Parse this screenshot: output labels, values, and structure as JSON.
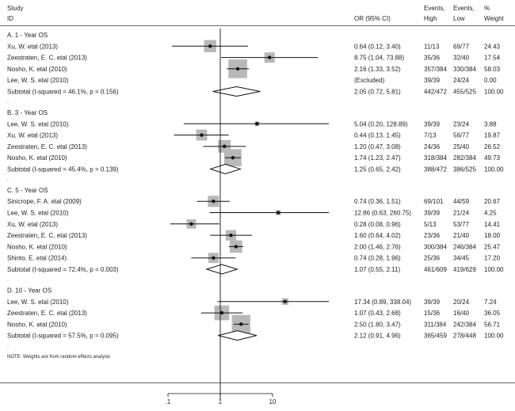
{
  "chart_data": {
    "type": "forest",
    "header": {
      "study": "Study",
      "id": "ID",
      "or_ci": "OR (95% CI)",
      "events_high_1": "Events,",
      "events_high_2": "High",
      "events_low_1": "Events,",
      "events_low_2": "Low",
      "weight_1": "%",
      "weight_2": "Weight"
    },
    "x_scale": "log",
    "x_ticks": [
      {
        "value": 0.1,
        "label": ".1"
      },
      {
        "value": 1,
        "label": "1"
      },
      {
        "value": 10,
        "label": "10"
      }
    ],
    "note": "NOTE: Weights are from random effects analysis",
    "groups": [
      {
        "label": "A. 1 - Year OS",
        "studies": [
          {
            "study": "Xu, W. etal (2013)",
            "or": 0.64,
            "lo": 0.12,
            "hi": 3.4,
            "or_ci": "0.64 (0.12, 3.40)",
            "events_high": "11/13",
            "events_low": "69/77",
            "weight": "24.43"
          },
          {
            "study": "Zeestraten, E. C. etal (2013)",
            "or": 8.75,
            "lo": 1.04,
            "hi": 73.88,
            "or_ci": "8.75 (1.04, 73.88)",
            "events_high": "35/36",
            "events_low": "32/40",
            "weight": "17.54"
          },
          {
            "study": "Nosho, K. etal (2010)",
            "or": 2.16,
            "lo": 1.33,
            "hi": 3.52,
            "or_ci": "2.16 (1.33, 3.52)",
            "events_high": "357/384",
            "events_low": "330/384",
            "weight": "58.03"
          },
          {
            "study": "Lee, W. S. etal (2010)",
            "or": null,
            "lo": null,
            "hi": null,
            "or_ci": "(Excluded)",
            "events_high": "39/39",
            "events_low": "24/24",
            "weight": "0.00"
          }
        ],
        "subtotal": {
          "label": "Subtotal  (I-squared = 46.1%, p = 0.156)",
          "or": 2.05,
          "lo": 0.72,
          "hi": 5.81,
          "or_ci": "2.05 (0.72, 5.81)",
          "events_high": "442/472",
          "events_low": "455/525",
          "weight": "100.00"
        }
      },
      {
        "label": "B. 3 - Year OS",
        "studies": [
          {
            "study": "Lee, W. S. etal (2010)",
            "or": 5.04,
            "lo": 0.2,
            "hi": 128.89,
            "or_ci": "5.04 (0.20, 128.89)",
            "events_high": "39/39",
            "events_low": "23/24",
            "weight": "3.88"
          },
          {
            "study": "Xu, W. etal (2013)",
            "or": 0.44,
            "lo": 0.13,
            "hi": 1.45,
            "or_ci": "0.44 (0.13, 1.45)",
            "events_high": "7/13",
            "events_low": "56/77",
            "weight": "19.87"
          },
          {
            "study": "Zeestraten, E. C. etal (2013)",
            "or": 1.2,
            "lo": 0.47,
            "hi": 3.08,
            "or_ci": "1.20 (0.47, 3.08)",
            "events_high": "24/36",
            "events_low": "25/40",
            "weight": "26.52"
          },
          {
            "study": "Nosho, K. etal (2010)",
            "or": 1.74,
            "lo": 1.23,
            "hi": 2.47,
            "or_ci": "1.74 (1.23, 2.47)",
            "events_high": "318/384",
            "events_low": "282/384",
            "weight": "49.73"
          }
        ],
        "subtotal": {
          "label": "Subtotal  (I-squared = 45.4%, p = 0.139)",
          "or": 1.25,
          "lo": 0.65,
          "hi": 2.42,
          "or_ci": "1.25 (0.65, 2.42)",
          "events_high": "388/472",
          "events_low": "386/525",
          "weight": "100.00"
        }
      },
      {
        "label": "C. 5 - Year OS",
        "studies": [
          {
            "study": "Sinicrope, F. A. etal (2009)",
            "or": 0.74,
            "lo": 0.36,
            "hi": 1.51,
            "or_ci": "0.74 (0.36, 1.51)",
            "events_high": "69/101",
            "events_low": "44/59",
            "weight": "20.67"
          },
          {
            "study": "Lee, W. S. etal (2010)",
            "or": 12.86,
            "lo": 0.63,
            "hi": 260.75,
            "or_ci": "12.86 (0.63, 260.75)",
            "events_high": "39/39",
            "events_low": "21/24",
            "weight": "4.25"
          },
          {
            "study": "Xu, W. etal (2013)",
            "or": 0.28,
            "lo": 0.08,
            "hi": 0.96,
            "or_ci": "0.28 (0.08, 0.96)",
            "events_high": "5/13",
            "events_low": "53/77",
            "weight": "14.41"
          },
          {
            "study": "Zeestraten, E. C. etal (2013)",
            "or": 1.6,
            "lo": 0.64,
            "hi": 4.02,
            "or_ci": "1.60 (0.64, 4.02)",
            "events_high": "23/36",
            "events_low": "21/40",
            "weight": "18.00"
          },
          {
            "study": "Nosho, K. etal (2010)",
            "or": 2.0,
            "lo": 1.46,
            "hi": 2.76,
            "or_ci": "2.00 (1.46, 2.76)",
            "events_high": "300/384",
            "events_low": "246/384",
            "weight": "25.47"
          },
          {
            "study": "Shinto, E. etal (2014)",
            "or": 0.74,
            "lo": 0.28,
            "hi": 1.96,
            "or_ci": "0.74 (0.28, 1.96)",
            "events_high": "25/36",
            "events_low": "34/45",
            "weight": "17.20"
          }
        ],
        "subtotal": {
          "label": "Subtotal  (I-squared = 72.4%, p = 0.003)",
          "or": 1.07,
          "lo": 0.55,
          "hi": 2.11,
          "or_ci": "1.07 (0.55, 2.11)",
          "events_high": "461/609",
          "events_low": "419/629",
          "weight": "100.00"
        }
      },
      {
        "label": "D. 10 - Year OS",
        "studies": [
          {
            "study": "Lee, W. S. etal (2010)",
            "or": 17.34,
            "lo": 0.89,
            "hi": 338.04,
            "or_ci": "17.34 (0.89, 338.04)",
            "events_high": "39/39",
            "events_low": "20/24",
            "weight": "7.24"
          },
          {
            "study": "Zeestraten, E. C. etal (2013)",
            "or": 1.07,
            "lo": 0.43,
            "hi": 2.68,
            "or_ci": "1.07 (0.43, 2.68)",
            "events_high": "15/36",
            "events_low": "16/40",
            "weight": "36.05"
          },
          {
            "study": "Nosho, K. etal (2010)",
            "or": 2.5,
            "lo": 1.8,
            "hi": 3.47,
            "or_ci": "2.50 (1.80, 3.47)",
            "events_high": "311/384",
            "events_low": "242/384",
            "weight": "56.71"
          }
        ],
        "subtotal": {
          "label": "Subtotal  (I-squared = 57.5%, p = 0.095)",
          "or": 2.12,
          "lo": 0.91,
          "hi": 4.96,
          "or_ci": "2.12 (0.91, 4.96)",
          "events_high": "365/459",
          "events_low": "278/448",
          "weight": "100.00"
        }
      }
    ]
  }
}
